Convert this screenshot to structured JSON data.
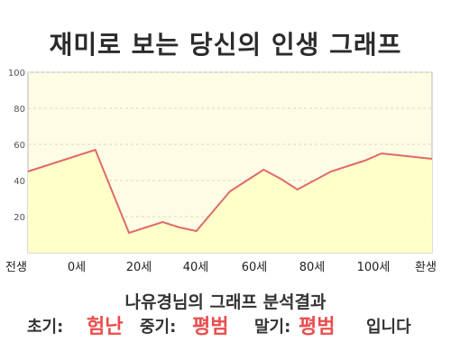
{
  "page_title": "재미로 보는 당신의 인생 그래프",
  "chart_data": {
    "type": "area",
    "x": [
      0,
      10,
      20,
      25,
      30,
      35,
      40,
      45,
      50,
      55,
      60,
      65,
      70,
      75,
      80,
      85,
      90,
      95,
      100,
      105,
      110,
      115,
      120
    ],
    "values": [
      45,
      51,
      57,
      34,
      11,
      14,
      17,
      14,
      12,
      23,
      34,
      40,
      46,
      41,
      35,
      40,
      45,
      48,
      51,
      55,
      54,
      53,
      52
    ],
    "xtick_labels": [
      "전생",
      "0세",
      "20세",
      "40세",
      "60세",
      "80세",
      "100세",
      "환생"
    ],
    "ylim": [
      0,
      100
    ],
    "yticks": [
      20,
      40,
      60,
      80,
      100
    ],
    "grid": true,
    "colors": {
      "line": "#e06a6a",
      "fill": "#ffffc6",
      "background": "#fdfde6"
    }
  },
  "analysis_title": "나유경님의 그래프 분석결과",
  "summary": {
    "early_label": "초기:",
    "early_value": "험난",
    "middle_label": "중기:",
    "middle_value": "평범",
    "late_label": "말기:",
    "late_value": "평범",
    "ending": "입니다"
  }
}
